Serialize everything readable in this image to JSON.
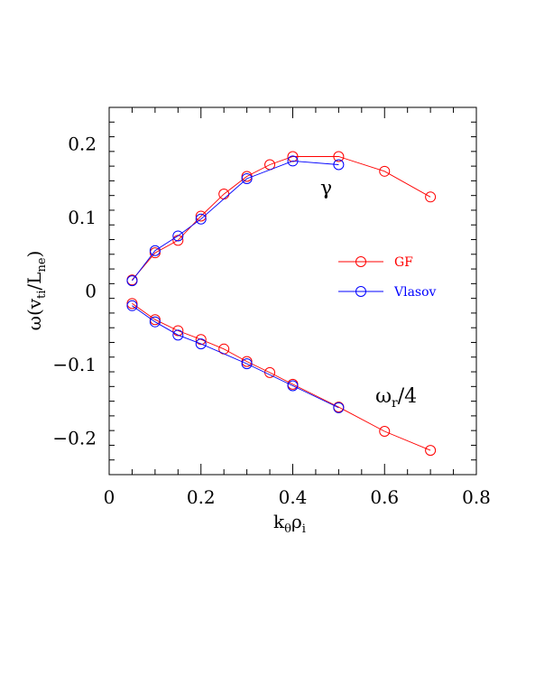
{
  "chart_data": {
    "type": "line",
    "xlabel": "kθρi",
    "ylabel": "ω(vti/Lne)",
    "xlim": [
      0,
      0.8
    ],
    "ylim": [
      -0.25,
      0.25
    ],
    "x_ticks": [
      "0",
      "0.2",
      "0.4",
      "0.6",
      "0.8"
    ],
    "y_ticks": [
      "−0.2",
      "−0.1",
      "0",
      "0.1",
      "0.2"
    ],
    "legend_position": "center-right",
    "grid": false,
    "colors": {
      "GF": "#ff0000",
      "Vlasov": "#0000ff",
      "axes": "#000000"
    },
    "series": [
      {
        "name": "GF",
        "quantity": "γ",
        "x": [
          0.05,
          0.1,
          0.15,
          0.2,
          0.25,
          0.3,
          0.35,
          0.4,
          0.5,
          0.6,
          0.7
        ],
        "y": [
          0.015,
          0.052,
          0.069,
          0.102,
          0.132,
          0.156,
          0.172,
          0.183,
          0.183,
          0.163,
          0.128
        ]
      },
      {
        "name": "Vlasov",
        "quantity": "γ",
        "x": [
          0.05,
          0.1,
          0.15,
          0.2,
          0.3,
          0.4,
          0.5
        ],
        "y": [
          0.014,
          0.055,
          0.075,
          0.098,
          0.153,
          0.177,
          0.172
        ]
      },
      {
        "name": "GF",
        "quantity": "ωr/4",
        "x": [
          0.05,
          0.1,
          0.15,
          0.2,
          0.25,
          0.3,
          0.35,
          0.4,
          0.5,
          0.6,
          0.7
        ],
        "y": [
          -0.017,
          -0.039,
          -0.054,
          -0.066,
          -0.079,
          -0.096,
          -0.111,
          -0.127,
          -0.158,
          -0.191,
          -0.217
        ]
      },
      {
        "name": "Vlasov",
        "quantity": "ωr/4",
        "x": [
          0.05,
          0.1,
          0.15,
          0.2,
          0.3,
          0.4,
          0.5
        ],
        "y": [
          -0.02,
          -0.042,
          -0.06,
          -0.072,
          -0.099,
          -0.129,
          -0.159
        ]
      }
    ],
    "legend": [
      {
        "label": "GF",
        "color": "#ff0000"
      },
      {
        "label": "Vlasov",
        "color": "#0000ff"
      }
    ],
    "annotations": [
      {
        "text": "γ",
        "x": 0.46,
        "y": 0.14
      },
      {
        "text": "ωr/4",
        "x": 0.58,
        "y": -0.143
      }
    ]
  }
}
